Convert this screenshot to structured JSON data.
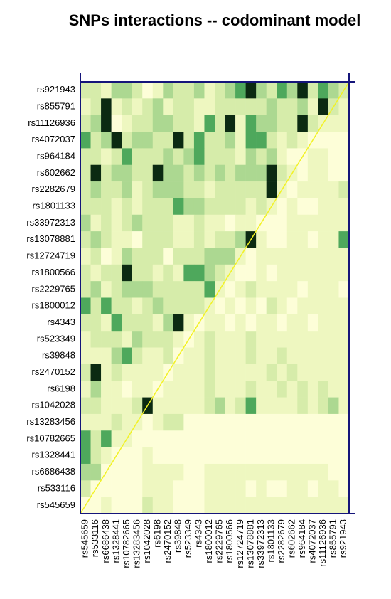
{
  "chart_data": {
    "type": "heatmap",
    "title": "SNPs interactions -- codominant model",
    "rows": [
      "rs921943",
      "rs855791",
      "rs11126936",
      "rs4072037",
      "rs964184",
      "rs602662",
      "rs2282679",
      "rs1801133",
      "rs33972313",
      "rs13078881",
      "rs12724719",
      "rs1800566",
      "rs2229765",
      "rs1800012",
      "rs4343",
      "rs523349",
      "rs39848",
      "rs2470152",
      "rs6198",
      "rs1042028",
      "rs13283456",
      "rs10782665",
      "rs1328441",
      "rs6686438",
      "rs533116",
      "rs545659"
    ],
    "categories": [
      "rs545659",
      "rs533116",
      "rs6686438",
      "rs1328441",
      "rs10782665",
      "rs13283456",
      "rs1042028",
      "rs6198",
      "rs2470152",
      "rs39848",
      "rs523349",
      "rs4343",
      "rs1800012",
      "rs2229765",
      "rs1800566",
      "rs12724719",
      "rs13078881",
      "rs33972313",
      "rs1801133",
      "rs2282679",
      "rs602662",
      "rs964184",
      "rs4072037",
      "rs11126936",
      "rs855791",
      "rs921943"
    ],
    "colors": [
      "#fdfed8",
      "#eef7c0",
      "#d6ecaa",
      "#acd891",
      "#4ea85c",
      "#0b2a12"
    ],
    "diagonal_color": "#f2f224",
    "frame_color": "#15157a",
    "values": [
      [
        2,
        2,
        1,
        3,
        3,
        2,
        0,
        1,
        3,
        2,
        2,
        3,
        1,
        2,
        3,
        4,
        5,
        3,
        2,
        4,
        3,
        5,
        2,
        4,
        3,
        2
      ],
      [
        1,
        2,
        5,
        1,
        2,
        1,
        2,
        3,
        1,
        2,
        2,
        1,
        1,
        2,
        2,
        2,
        2,
        2,
        3,
        2,
        2,
        3,
        1,
        5,
        2,
        1
      ],
      [
        2,
        3,
        5,
        0,
        1,
        2,
        2,
        3,
        3,
        2,
        2,
        1,
        4,
        2,
        5,
        1,
        4,
        3,
        3,
        2,
        2,
        5,
        2,
        1,
        1,
        1
      ],
      [
        4,
        2,
        3,
        5,
        2,
        3,
        3,
        2,
        2,
        5,
        2,
        4,
        2,
        2,
        3,
        1,
        4,
        4,
        2,
        1,
        2,
        1,
        0,
        0,
        0,
        0
      ],
      [
        2,
        2,
        1,
        2,
        4,
        2,
        2,
        2,
        3,
        2,
        3,
        4,
        2,
        2,
        2,
        1,
        3,
        2,
        3,
        1,
        0,
        0,
        1,
        1,
        0,
        0
      ],
      [
        2,
        5,
        2,
        3,
        3,
        2,
        2,
        5,
        3,
        3,
        2,
        3,
        2,
        3,
        2,
        3,
        3,
        3,
        5,
        2,
        1,
        0,
        1,
        1,
        0,
        0
      ],
      [
        2,
        3,
        2,
        2,
        3,
        1,
        2,
        3,
        3,
        3,
        2,
        2,
        1,
        2,
        2,
        2,
        2,
        2,
        5,
        1,
        0,
        1,
        1,
        1,
        1,
        2
      ],
      [
        2,
        2,
        2,
        1,
        2,
        1,
        2,
        2,
        2,
        4,
        3,
        3,
        2,
        2,
        2,
        2,
        1,
        2,
        1,
        0,
        1,
        0,
        0,
        1,
        1,
        1
      ],
      [
        3,
        1,
        2,
        1,
        2,
        3,
        2,
        2,
        2,
        1,
        1,
        2,
        1,
        1,
        0,
        1,
        1,
        0,
        0,
        0,
        1,
        1,
        1,
        1,
        1,
        1
      ],
      [
        2,
        3,
        2,
        1,
        1,
        0,
        2,
        2,
        2,
        1,
        1,
        2,
        1,
        2,
        2,
        3,
        5,
        1,
        0,
        0,
        1,
        1,
        0,
        1,
        1,
        4
      ],
      [
        1,
        2,
        0,
        1,
        3,
        2,
        2,
        2,
        0,
        2,
        2,
        2,
        3,
        3,
        3,
        1,
        0,
        1,
        1,
        1,
        1,
        1,
        1,
        1,
        1,
        1
      ],
      [
        2,
        1,
        2,
        2,
        5,
        2,
        2,
        1,
        2,
        1,
        4,
        4,
        3,
        2,
        1,
        0,
        0,
        1,
        0,
        1,
        1,
        1,
        1,
        1,
        1,
        1
      ],
      [
        2,
        3,
        1,
        2,
        3,
        3,
        3,
        2,
        2,
        2,
        2,
        2,
        4,
        1,
        0,
        1,
        2,
        1,
        1,
        1,
        1,
        0,
        1,
        1,
        1,
        0
      ],
      [
        4,
        2,
        4,
        2,
        2,
        1,
        2,
        3,
        2,
        2,
        2,
        2,
        1,
        0,
        1,
        0,
        1,
        0,
        2,
        1,
        0,
        1,
        1,
        1,
        1,
        1
      ],
      [
        2,
        2,
        1,
        4,
        2,
        2,
        2,
        1,
        3,
        5,
        1,
        0,
        1,
        1,
        0,
        1,
        0,
        1,
        1,
        0,
        1,
        1,
        0,
        1,
        1,
        1
      ],
      [
        1,
        2,
        2,
        2,
        1,
        3,
        2,
        2,
        2,
        1,
        0,
        1,
        2,
        1,
        1,
        1,
        2,
        1,
        1,
        1,
        1,
        1,
        1,
        1,
        1,
        1
      ],
      [
        1,
        1,
        1,
        3,
        4,
        2,
        1,
        1,
        2,
        0,
        1,
        1,
        2,
        1,
        1,
        1,
        2,
        1,
        1,
        2,
        1,
        1,
        1,
        1,
        1,
        1
      ],
      [
        2,
        5,
        1,
        2,
        1,
        1,
        1,
        1,
        0,
        1,
        1,
        1,
        2,
        1,
        1,
        1,
        1,
        1,
        2,
        1,
        2,
        1,
        1,
        1,
        1,
        1
      ],
      [
        1,
        3,
        1,
        1,
        0,
        1,
        1,
        0,
        1,
        1,
        1,
        1,
        2,
        1,
        1,
        1,
        2,
        1,
        1,
        2,
        1,
        2,
        1,
        2,
        1,
        1
      ],
      [
        2,
        2,
        1,
        1,
        1,
        2,
        5,
        1,
        1,
        1,
        1,
        1,
        2,
        3,
        1,
        2,
        4,
        1,
        1,
        1,
        1,
        2,
        1,
        2,
        3,
        1
      ],
      [
        1,
        1,
        1,
        2,
        1,
        1,
        0,
        1,
        2,
        2,
        0,
        0,
        0,
        0,
        0,
        0,
        0,
        0,
        0,
        0,
        0,
        0,
        0,
        0,
        0,
        0
      ],
      [
        4,
        2,
        4,
        1,
        1,
        0,
        0,
        0,
        0,
        0,
        0,
        0,
        0,
        0,
        0,
        0,
        0,
        0,
        0,
        0,
        0,
        0,
        0,
        0,
        0,
        0
      ],
      [
        4,
        2,
        1,
        0,
        0,
        0,
        1,
        0,
        0,
        0,
        0,
        0,
        0,
        0,
        0,
        0,
        0,
        0,
        0,
        0,
        0,
        0,
        0,
        0,
        0,
        0
      ],
      [
        3,
        3,
        0,
        0,
        0,
        0,
        1,
        1,
        1,
        1,
        0,
        0,
        1,
        1,
        1,
        1,
        1,
        1,
        1,
        1,
        1,
        1,
        1,
        1,
        0,
        0
      ],
      [
        2,
        0,
        0,
        0,
        0,
        0,
        1,
        1,
        1,
        0,
        0,
        0,
        1,
        1,
        1,
        1,
        0,
        1,
        0,
        0,
        1,
        1,
        0,
        1,
        1,
        0
      ],
      [
        0,
        0,
        1,
        0,
        0,
        0,
        2,
        1,
        1,
        0,
        0,
        0,
        1,
        1,
        1,
        1,
        1,
        1,
        1,
        1,
        1,
        1,
        1,
        1,
        1,
        1
      ]
    ]
  }
}
